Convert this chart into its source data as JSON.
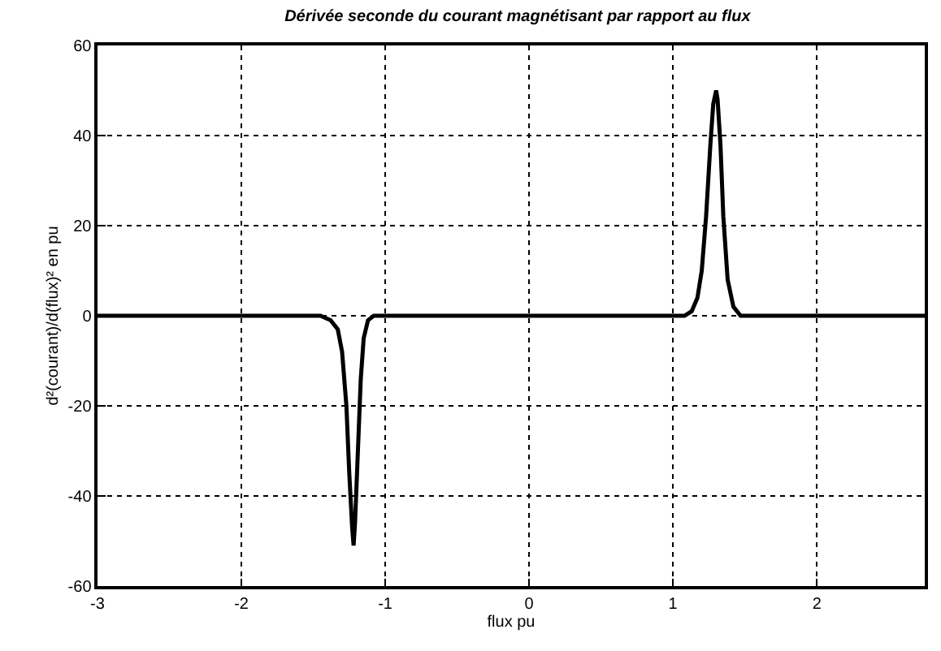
{
  "chart_data": {
    "type": "line",
    "title": "Dérivée seconde du courant magnétisant par rapport au flux",
    "xlabel": "flux pu",
    "ylabel": "d²(courant)/d(flux)² en pu",
    "series": [
      {
        "color": "#000000",
        "x": [
          -3,
          -2,
          -1.6,
          -1.45,
          -1.38,
          -1.33,
          -1.3,
          -1.27,
          -1.25,
          -1.23,
          -1.22,
          -1.21,
          -1.19,
          -1.17,
          -1.15,
          -1.12,
          -1.08,
          -1,
          0,
          1,
          1.08,
          1.13,
          1.17,
          1.2,
          1.23,
          1.26,
          1.28,
          1.3,
          1.31,
          1.33,
          1.35,
          1.38,
          1.42,
          1.47,
          1.55,
          2,
          2.75
        ],
        "values": [
          0,
          0,
          0,
          0,
          -1,
          -3,
          -8,
          -20,
          -35,
          -47,
          -51,
          -46,
          -30,
          -14,
          -5,
          -1,
          0,
          0,
          0,
          0,
          0,
          1,
          4,
          10,
          22,
          38,
          47,
          50,
          48,
          38,
          22,
          8,
          2,
          0,
          0,
          0,
          0
        ]
      }
    ],
    "xlim": [
      -3,
      2.75
    ],
    "ylim": [
      -60,
      60
    ],
    "xticks": [
      -3,
      -2,
      -1,
      0,
      1,
      2
    ],
    "yticks": [
      -60,
      -40,
      -20,
      0,
      20,
      40,
      60
    ],
    "grid": true,
    "line_style": "solid",
    "marker": "none"
  }
}
